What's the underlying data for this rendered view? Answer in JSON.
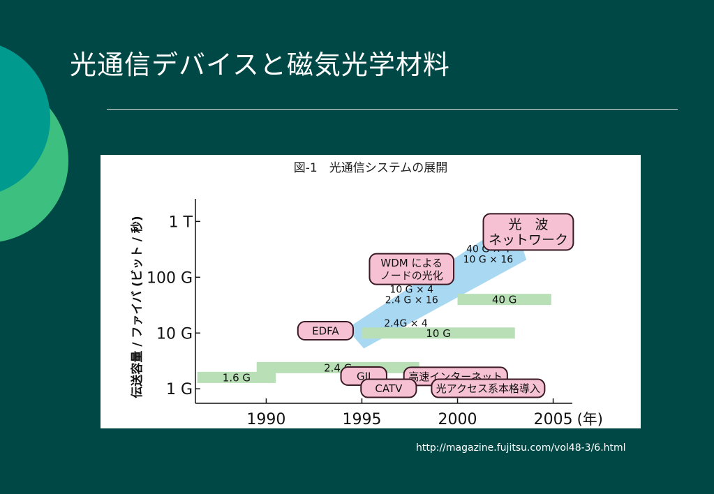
{
  "slide": {
    "title": "光通信デバイスと磁気光学材料",
    "source_url": "http://magazine.fujitsu.com/vol48-3/6.html"
  },
  "colors": {
    "background": "#004846",
    "decor_teal": "#009a8e",
    "decor_green": "#3dbf7f",
    "bar_green": "#b9dfb6",
    "arrow_blue": "#a9d8f3",
    "pill_pink": "#f6c2d3",
    "pill_border": "#3a1a24"
  },
  "chart_data": {
    "type": "bar",
    "title": "図-1　光通信システムの展開",
    "ylabel": "伝送容量 / ファイバ (ビット / 秒)",
    "xunit": "(年)",
    "xlim": [
      1986.3,
      2006
    ],
    "ylim": [
      0.55,
      2200
    ],
    "yscale": "log",
    "x_ticks": [
      {
        "value": 1990,
        "label": "1990"
      },
      {
        "value": 1995,
        "label": "1995"
      },
      {
        "value": 2000,
        "label": "2000"
      },
      {
        "value": 2005,
        "label": "2005"
      }
    ],
    "y_ticks": [
      {
        "value": 1,
        "label": "1 G"
      },
      {
        "value": 10,
        "label": "10 G"
      },
      {
        "value": 100,
        "label": "100 G"
      },
      {
        "value": 1000,
        "label": "1 T"
      }
    ],
    "bars": [
      {
        "label": "1.6 G",
        "start": 1986.4,
        "end": 1990.5,
        "value": 1.6
      },
      {
        "label": "2.4 G",
        "start": 1989.5,
        "end": 1998,
        "value": 2.4
      },
      {
        "label": "10 G",
        "start": 1995,
        "end": 2003,
        "value": 10
      },
      {
        "label": "40 G",
        "start": 2000,
        "end": 2004.9,
        "value": 40
      }
    ],
    "trend_labels": [
      {
        "lines": [
          "2.4G × 4"
        ],
        "x": 1997.3,
        "y": 15
      },
      {
        "lines": [
          "10 G × 4",
          "2.4 G × 16"
        ],
        "x": 1997.6,
        "y": 49
      },
      {
        "lines": [
          "40 G × 4",
          "10 G × 16"
        ],
        "x": 2001.6,
        "y": 263
      }
    ],
    "milestones": [
      {
        "label": "EDFA",
        "x": 1993.1,
        "y": 11
      },
      {
        "label": "WDM による\nノードの光化",
        "x": 1997.6,
        "y": 140
      },
      {
        "label": "光　波\nネットワーク",
        "x": 2003.7,
        "y": 650
      },
      {
        "label": "GII",
        "x": 1995.1,
        "y": 1.69
      },
      {
        "label": "高速インターネット",
        "x": 1999.9,
        "y": 1.67
      },
      {
        "label": "CATV",
        "x": 1996.4,
        "y": 1.02
      },
      {
        "label": "光アクセス系本格導入",
        "x": 2001.6,
        "y": 1.02
      }
    ]
  }
}
